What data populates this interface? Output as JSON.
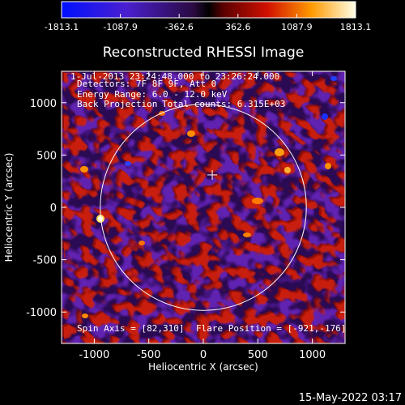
{
  "title": "Reconstructed RHESSI Image",
  "colorbar": {
    "tick_labels": [
      "-1813.1",
      "-1087.9",
      "-362.6",
      "362.6",
      "1087.9",
      "1813.1"
    ],
    "range": [
      -1813.1,
      1813.1
    ]
  },
  "info": {
    "time_range": "1-Jul-2013 23:24:48.000 to 23:26:24.000",
    "detectors": "Detectors: 7F 8F 9F, Att 0",
    "energy_range": "Energy Range: 6.0 - 12.0 keV",
    "method": "Back Projection",
    "total_counts": "Total counts: 6.315E+03",
    "spin_axis": "Spin Axis = [82,310]",
    "flare_position": "Flare Position = [-921,-176]"
  },
  "axes": {
    "xlabel": "Heliocentric X (arcsec)",
    "ylabel": "Heliocentric Y (arcsec)",
    "xticks": [
      "-1000",
      "-500",
      "0",
      "500",
      "1000"
    ],
    "yticks": [
      "1000",
      "500",
      "0",
      "-500",
      "-1000"
    ],
    "xlim": [
      -1300,
      1300
    ],
    "ylim": [
      -1300,
      1300
    ]
  },
  "solar_limb_radius_arcsec": 945,
  "crosshair_center_arcsec": [
    82,
    310
  ],
  "footer_timestamp": "15-May-2022 03:17"
}
